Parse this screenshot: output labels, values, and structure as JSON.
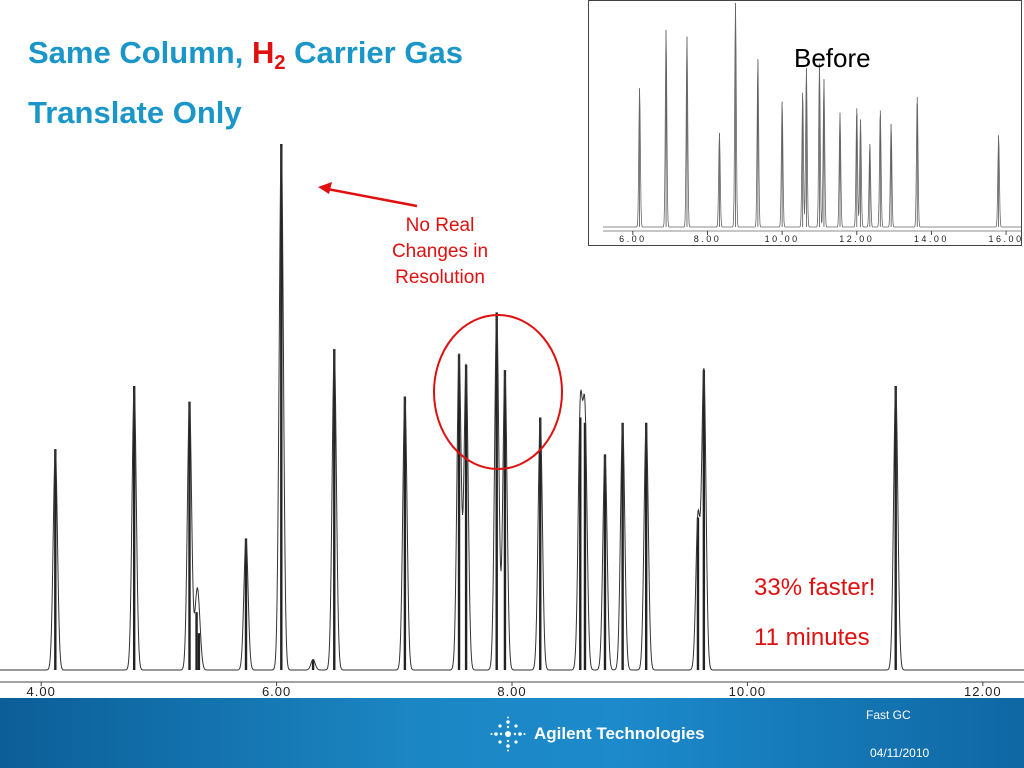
{
  "slide": {
    "title_part1": "Same Column, ",
    "title_h": "H",
    "title_sub": "2",
    "title_part2": " Carrier Gas",
    "title_line2": "Translate Only"
  },
  "annotations": {
    "no_real_line1": "No Real",
    "no_real_line2": "Changes in",
    "no_real_line3": "Resolution",
    "faster": "33% faster!",
    "minutes": "11 minutes"
  },
  "footer": {
    "company": "Agilent Technologies",
    "label": "Fast GC",
    "date": "04/11/2010"
  },
  "colors": {
    "title_blue": "#1a96c8",
    "accent_red": "#e01010",
    "footer_blue": "#1b86c3",
    "trace": "#333333"
  },
  "chart_data": [
    {
      "type": "line",
      "title": "",
      "xlabel": "",
      "ylabel": "",
      "xlim": [
        3.65,
        12.35
      ],
      "ylim": [
        0,
        100
      ],
      "x_ticks": [
        "4.00",
        "6.00",
        "8.00",
        "10.00",
        "12.00"
      ],
      "series": [
        {
          "peaks": [
            {
              "rt": 4.12,
              "height": 42
            },
            {
              "rt": 4.79,
              "height": 54
            },
            {
              "rt": 5.26,
              "height": 51
            },
            {
              "rt": 5.32,
              "height": 11
            },
            {
              "rt": 5.34,
              "height": 7
            },
            {
              "rt": 5.74,
              "height": 25
            },
            {
              "rt": 6.04,
              "height": 100
            },
            {
              "rt": 6.31,
              "height": 2
            },
            {
              "rt": 6.49,
              "height": 61
            },
            {
              "rt": 7.09,
              "height": 52
            },
            {
              "rt": 7.55,
              "height": 60
            },
            {
              "rt": 7.61,
              "height": 58
            },
            {
              "rt": 7.87,
              "height": 68
            },
            {
              "rt": 7.94,
              "height": 57
            },
            {
              "rt": 8.24,
              "height": 48
            },
            {
              "rt": 8.58,
              "height": 48
            },
            {
              "rt": 8.62,
              "height": 47
            },
            {
              "rt": 8.79,
              "height": 41
            },
            {
              "rt": 8.94,
              "height": 47
            },
            {
              "rt": 9.14,
              "height": 47
            },
            {
              "rt": 9.58,
              "height": 29
            },
            {
              "rt": 9.63,
              "height": 57
            },
            {
              "rt": 11.26,
              "height": 54
            }
          ]
        }
      ]
    },
    {
      "type": "line",
      "title": "Before",
      "xlabel": "",
      "ylabel": "",
      "xlim": [
        5.2,
        16.4
      ],
      "ylim": [
        0,
        100
      ],
      "x_ticks": [
        "6.00",
        "8.00",
        "10.00",
        "12.00",
        "14.00",
        "16.00"
      ],
      "series": [
        {
          "peaks": [
            {
              "rt": 6.18,
              "height": 62
            },
            {
              "rt": 6.89,
              "height": 88
            },
            {
              "rt": 7.45,
              "height": 85
            },
            {
              "rt": 8.32,
              "height": 42
            },
            {
              "rt": 8.75,
              "height": 100
            },
            {
              "rt": 9.35,
              "height": 75
            },
            {
              "rt": 10.0,
              "height": 56
            },
            {
              "rt": 10.55,
              "height": 60
            },
            {
              "rt": 10.65,
              "height": 71
            },
            {
              "rt": 11.0,
              "height": 73
            },
            {
              "rt": 11.12,
              "height": 66
            },
            {
              "rt": 11.55,
              "height": 51
            },
            {
              "rt": 12.0,
              "height": 53
            },
            {
              "rt": 12.1,
              "height": 48
            },
            {
              "rt": 12.35,
              "height": 37
            },
            {
              "rt": 12.63,
              "height": 52
            },
            {
              "rt": 12.92,
              "height": 46
            },
            {
              "rt": 13.62,
              "height": 58
            },
            {
              "rt": 15.8,
              "height": 41
            }
          ]
        }
      ]
    }
  ]
}
